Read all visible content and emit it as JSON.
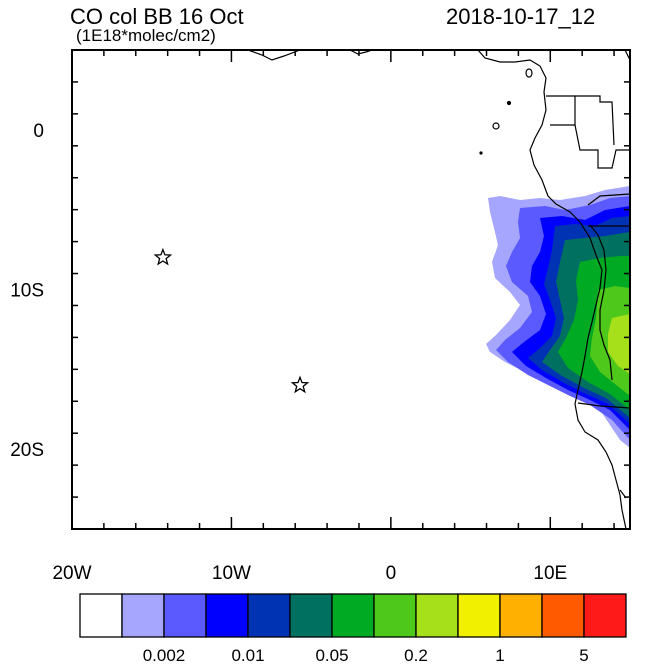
{
  "header": {
    "title": "CO col BB 16 Oct",
    "units": "(1E18*molec/cm2)",
    "timestamp": "2018-10-17_12"
  },
  "map": {
    "lon_range": [
      -20,
      15
    ],
    "lat_range": [
      -25,
      5
    ],
    "lon_ticks": [
      {
        "value": -20,
        "label": "20W"
      },
      {
        "value": -10,
        "label": "10W"
      },
      {
        "value": 0,
        "label": "0"
      },
      {
        "value": 10,
        "label": "10E"
      }
    ],
    "lat_ticks": [
      {
        "value": 0,
        "label": "0"
      },
      {
        "value": -10,
        "label": "10S"
      },
      {
        "value": -20,
        "label": "20S"
      }
    ],
    "markers": [
      {
        "name": "star-marker",
        "lon": -14.3,
        "lat": -8.0
      },
      {
        "name": "star-marker",
        "lon": -5.7,
        "lat": -16.0
      }
    ]
  },
  "colorbar": {
    "colors": [
      "#ffffff",
      "#a6a6ff",
      "#5a5aff",
      "#0000ff",
      "#0033b3",
      "#007060",
      "#00aa22",
      "#4ec81a",
      "#a6e01a",
      "#f0f000",
      "#ffb000",
      "#ff5a00",
      "#ff1a1a"
    ],
    "labels": [
      "0.002",
      "0.01",
      "0.05",
      "0.2",
      "1",
      "5"
    ]
  }
}
